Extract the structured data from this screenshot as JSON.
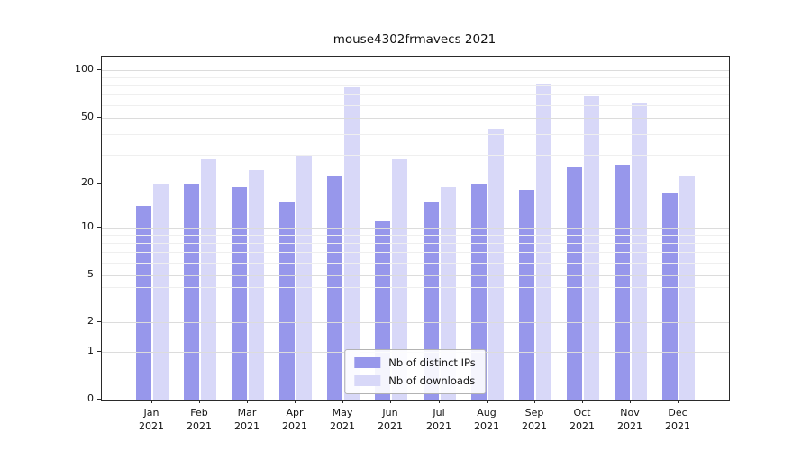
{
  "chart_data": {
    "type": "bar",
    "title": "mouse4302frmavecs 2021",
    "categories": [
      "Jan",
      "Feb",
      "Mar",
      "Apr",
      "May",
      "Jun",
      "Jul",
      "Aug",
      "Sep",
      "Oct",
      "Nov",
      "Dec"
    ],
    "year": "2021",
    "series": [
      {
        "name": "Nb of distinct IPs",
        "color": "#9797eb",
        "values": [
          14,
          20,
          19,
          15,
          22,
          11,
          15,
          20,
          18,
          25,
          26,
          17
        ]
      },
      {
        "name": "Nb of downloads",
        "color": "#d8d8f8",
        "values": [
          20,
          28,
          24,
          30,
          78,
          28,
          19,
          43,
          82,
          68,
          62,
          22
        ]
      }
    ],
    "yticks": [
      0,
      1,
      2,
      5,
      10,
      20,
      50,
      100
    ],
    "ylim": [
      0,
      110
    ],
    "yscale": "symlog",
    "grid": true,
    "legend_position": "lower center",
    "xlabel": "",
    "ylabel": ""
  }
}
